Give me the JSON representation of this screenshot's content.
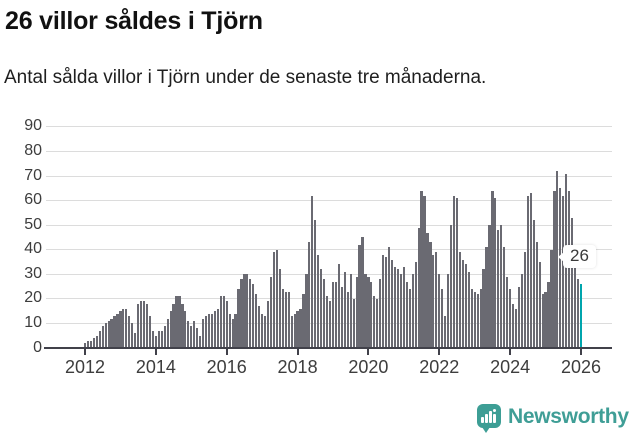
{
  "header": {
    "title": "26 villor såldes i Tjörn",
    "subtitle": "Antal sålda villor i Tjörn under de senaste tre månaderna."
  },
  "chart_data": {
    "type": "bar",
    "title": "26 villor såldes i Tjörn",
    "subtitle": "Antal sålda villor i Tjörn under de senaste tre månaderna.",
    "unit": "sålda villor per 3 månader",
    "start": "2012-01",
    "frequency": "monthly",
    "x_tick_labels": [
      "2012",
      "2014",
      "2016",
      "2018",
      "2020",
      "2022",
      "2024",
      "2026"
    ],
    "y_ticks": [
      0,
      10,
      20,
      30,
      40,
      50,
      60,
      70,
      80,
      90
    ],
    "ylim": [
      0,
      90
    ],
    "grid": "horizontal",
    "values": [
      2,
      3,
      3,
      4,
      5,
      7,
      9,
      10,
      11,
      12,
      13,
      14,
      15,
      16,
      16,
      13,
      10,
      6,
      18,
      19,
      19,
      18,
      13,
      7,
      5,
      7,
      7,
      9,
      12,
      15,
      18,
      21,
      21,
      18,
      15,
      11,
      9,
      11,
      8,
      5,
      12,
      13,
      14,
      14,
      15,
      16,
      21,
      21,
      19,
      14,
      12,
      14,
      24,
      28,
      30,
      30,
      28,
      26,
      22,
      17,
      14,
      13,
      19,
      29,
      39,
      40,
      32,
      24,
      23,
      23,
      13,
      14,
      15,
      16,
      22,
      30,
      43,
      62,
      52,
      38,
      32,
      28,
      21,
      19,
      27,
      27,
      34,
      25,
      31,
      23,
      30,
      20,
      29,
      42,
      45,
      30,
      29,
      27,
      21,
      20,
      28,
      38,
      37,
      41,
      36,
      33,
      32,
      30,
      33,
      27,
      24,
      30,
      35,
      49,
      64,
      62,
      47,
      43,
      38,
      39,
      30,
      24,
      13,
      30,
      50,
      62,
      61,
      39,
      36,
      34,
      31,
      24,
      23,
      22,
      24,
      32,
      41,
      50,
      64,
      61,
      48,
      50,
      41,
      29,
      24,
      18,
      16,
      25,
      30,
      39,
      62,
      63,
      52,
      43,
      35,
      22,
      23,
      27,
      40,
      64,
      72,
      65,
      62,
      71,
      64,
      53,
      40,
      28,
      26
    ],
    "highlight": {
      "index": 168,
      "value": 26,
      "label": "26"
    }
  },
  "colors": {
    "bar": "#6a6a72",
    "highlight": "#00a5ad",
    "grid": "#dcdcdc",
    "axis": "#41414a",
    "text": "#3d3d3d",
    "logo": "#3d9e95"
  },
  "branding": {
    "name": "Newsworthy"
  }
}
